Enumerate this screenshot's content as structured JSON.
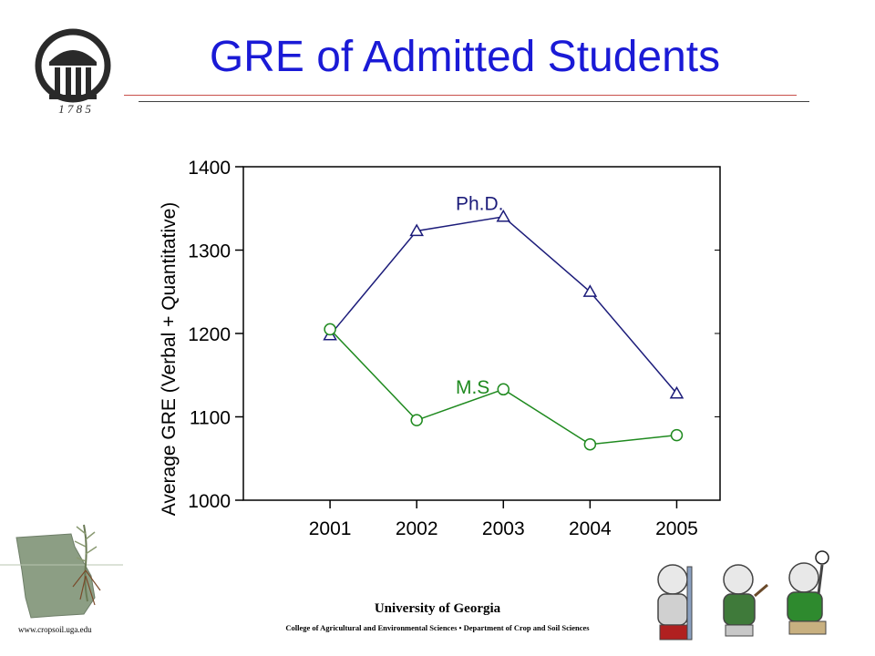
{
  "slide": {
    "title": "GRE of Admitted Students",
    "logo_year": "1 7 8 5",
    "url": "www.cropsoil.uga.edu",
    "university": "University of Georgia",
    "college": "College of Agricultural and Environmental Sciences • Department of Crop and Soil Sciences"
  },
  "chart_data": {
    "type": "line",
    "title": "",
    "xlabel": "",
    "ylabel": "Average GRE (Verbal + Quantitative)",
    "x": [
      2001,
      2002,
      2003,
      2004,
      2005
    ],
    "x_ticks": [
      "2001",
      "2002",
      "2003",
      "2004",
      "2005"
    ],
    "ylim": [
      1000,
      1400
    ],
    "y_ticks": [
      "1000",
      "1100",
      "1200",
      "1300",
      "1400"
    ],
    "grid": false,
    "series": [
      {
        "name": "Ph.D.",
        "marker": "triangle",
        "color": "#1c1c7a",
        "values": [
          1198,
          1323,
          1340,
          1250,
          1128
        ]
      },
      {
        "name": "M.S",
        "marker": "circle",
        "color": "#1f8a1f",
        "values": [
          1205,
          1096,
          1133,
          1067,
          1078
        ]
      }
    ]
  }
}
